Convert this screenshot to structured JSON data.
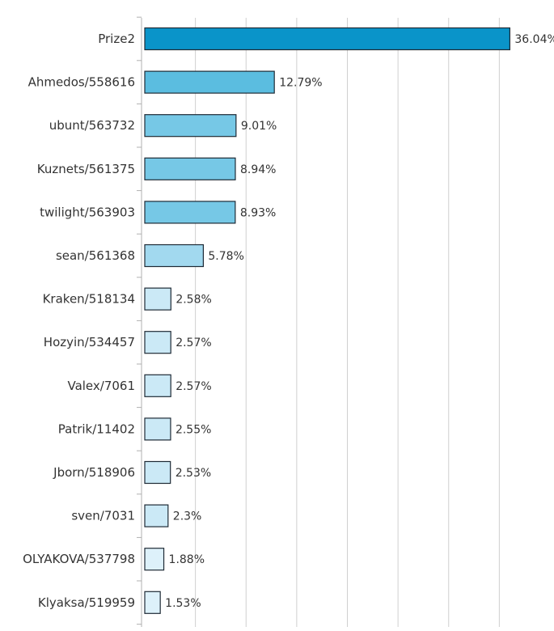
{
  "chart_data": {
    "type": "bar",
    "orientation": "horizontal",
    "title": "",
    "xlabel": "",
    "ylabel": "",
    "xlim": [
      0,
      40
    ],
    "grid": true,
    "legend": "none",
    "categories": [
      "Prize2",
      "Ahmedos/558616",
      "ubunt/563732",
      "Kuznets/561375",
      "twilight/563903",
      "sean/561368",
      "Kraken/518134",
      "Hozyin/534457",
      "Valex/7061",
      "Patrik/11402",
      "Jborn/518906",
      "sven/7031",
      "OLYAKOVA/537798",
      "Klyaksa/519959"
    ],
    "values": [
      36.04,
      12.79,
      9.01,
      8.94,
      8.93,
      5.78,
      2.58,
      2.57,
      2.57,
      2.55,
      2.53,
      2.3,
      1.88,
      1.53
    ],
    "value_labels": [
      "36.04%",
      "12.79%",
      "9.01%",
      "8.94%",
      "8.93%",
      "5.78%",
      "2.58%",
      "2.57%",
      "2.57%",
      "2.55%",
      "2.53%",
      "2.3%",
      "1.88%",
      "1.53%"
    ],
    "colors": [
      "#0a94c9",
      "#5bbde0",
      "#76c8e6",
      "#76c8e6",
      "#76c8e6",
      "#a2d9ef",
      "#cbe9f6",
      "#cbe9f6",
      "#cbe9f6",
      "#cbe9f6",
      "#cbe9f6",
      "#cbe9f6",
      "#ddf1fa",
      "#ddf1fa"
    ]
  },
  "style": {
    "grid_color": "#cfcfcf",
    "axis_color": "#b0b0b0",
    "bar_stroke": "#1e2a35"
  }
}
